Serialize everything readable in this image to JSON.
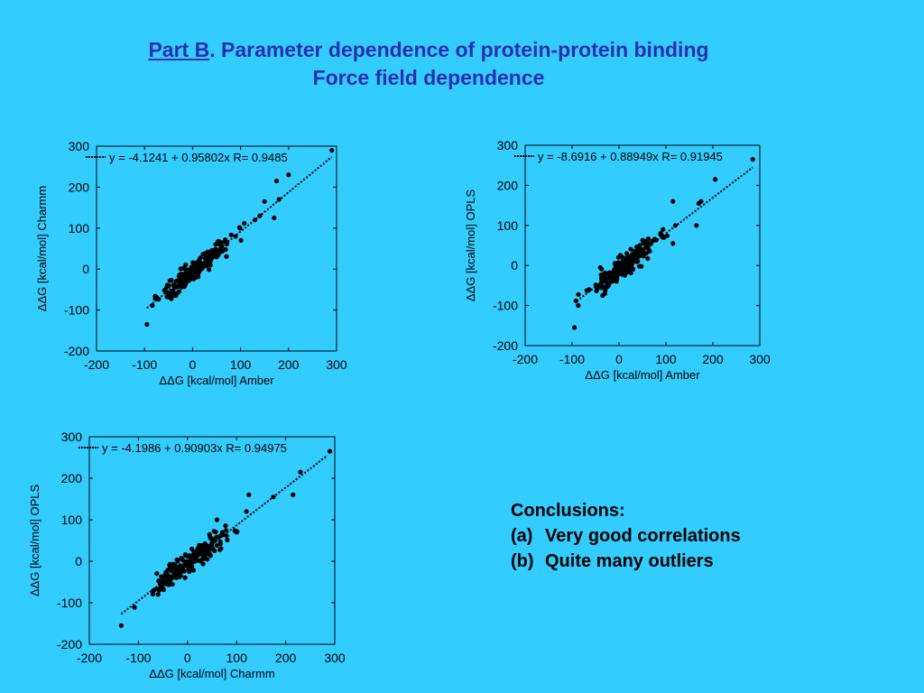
{
  "slide": {
    "title_part": "Part B",
    "title_rest": ". Parameter dependence of protein-protein binding",
    "subtitle": "Force field dependence"
  },
  "conclusions": {
    "heading": "Conclusions:",
    "items": [
      {
        "marker": "(a)",
        "text": "Very good correlations"
      },
      {
        "marker": "(b)",
        "text": "Quite many outliers"
      }
    ]
  },
  "chart_data": [
    {
      "type": "scatter",
      "xlabel": "ΔΔG [kcal/mol]  Amber",
      "ylabel": "ΔΔG [kcal/mol] Charmm",
      "sub": "el",
      "xlim": [
        -200,
        300
      ],
      "ylim": [
        -200,
        300
      ],
      "xticks": [
        -200,
        -100,
        0,
        100,
        200,
        300
      ],
      "yticks": [
        -200,
        -100,
        0,
        100,
        200,
        300
      ],
      "fit": {
        "intercept": -4.1241,
        "slope": 0.95802,
        "r": 0.9485,
        "x_range": [
          -95,
          290
        ]
      },
      "legend_text": "y = -4.1241 + 0.95802x    R= 0.9485",
      "legend": "top-left",
      "seed": 11,
      "n_points": 190,
      "points": [
        [
          -95,
          -135
        ],
        [
          -35,
          -65
        ],
        [
          -28,
          -55
        ],
        [
          -20,
          -40
        ],
        [
          175,
          215
        ],
        [
          200,
          230
        ],
        [
          290,
          290
        ],
        [
          180,
          170
        ],
        [
          170,
          125
        ],
        [
          150,
          165
        ],
        [
          140,
          130
        ],
        [
          130,
          120
        ]
      ]
    },
    {
      "type": "scatter",
      "xlabel": "ΔΔG [kcal/mol]  Amber",
      "ylabel": "ΔΔG [kcal/mol]  OPLS",
      "sub": "el",
      "xlim": [
        -200,
        300
      ],
      "ylim": [
        -200,
        300
      ],
      "xticks": [
        -200,
        -100,
        0,
        100,
        200,
        300
      ],
      "yticks": [
        -200,
        -100,
        0,
        100,
        200,
        300
      ],
      "fit": {
        "intercept": -8.6916,
        "slope": 0.88949,
        "r": 0.91945,
        "x_range": [
          -90,
          285
        ]
      },
      "legend_text": "y = -8.6916 + 0.88949x    R= 0.91945",
      "legend": "top-left",
      "seed": 23,
      "n_points": 190,
      "points": [
        [
          -95,
          -155
        ],
        [
          -35,
          -75
        ],
        [
          -30,
          -70
        ],
        [
          -40,
          -5
        ],
        [
          205,
          215
        ],
        [
          285,
          265
        ],
        [
          115,
          160
        ],
        [
          170,
          155
        ],
        [
          175,
          160
        ],
        [
          165,
          100
        ],
        [
          120,
          100
        ],
        [
          115,
          55
        ]
      ]
    },
    {
      "type": "scatter",
      "xlabel": "ΔΔG [kcal/mol]  Charmm",
      "ylabel": "ΔΔG [kcal/mol]  OPLS",
      "sub": "el",
      "xlim": [
        -200,
        300
      ],
      "ylim": [
        -200,
        300
      ],
      "xticks": [
        -200,
        -100,
        0,
        100,
        200,
        300
      ],
      "yticks": [
        -200,
        -100,
        0,
        100,
        200,
        300
      ],
      "fit": {
        "intercept": -4.1986,
        "slope": 0.90903,
        "r": 0.94975,
        "x_range": [
          -135,
          285
        ]
      },
      "legend_text": "y = -4.1986 + 0.90903x    R= 0.94975",
      "legend": "top-left",
      "seed": 37,
      "n_points": 190,
      "points": [
        [
          -135,
          -155
        ],
        [
          -60,
          -80
        ],
        [
          -70,
          -72
        ],
        [
          -45,
          -50
        ],
        [
          230,
          215
        ],
        [
          215,
          160
        ],
        [
          290,
          265
        ],
        [
          175,
          155
        ],
        [
          125,
          160
        ],
        [
          120,
          120
        ],
        [
          60,
          100
        ],
        [
          100,
          70
        ]
      ]
    }
  ]
}
